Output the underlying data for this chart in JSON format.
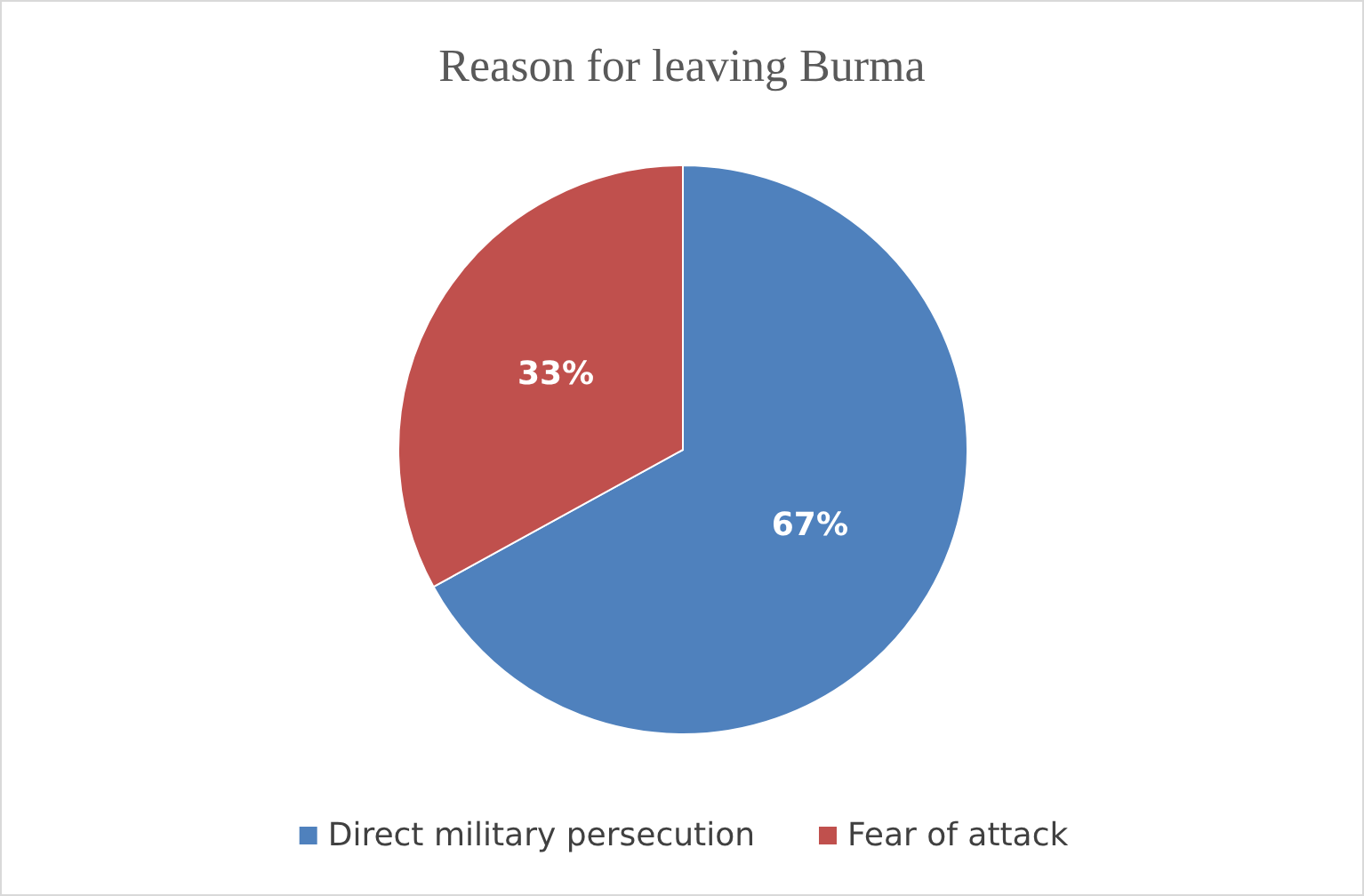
{
  "chart_data": {
    "type": "pie",
    "title": "Reason for leaving Burma",
    "categories": [
      "Direct military persecution",
      "Fear of attack"
    ],
    "values": [
      67,
      33
    ],
    "colors": [
      "#4f81bd",
      "#c0504d"
    ],
    "value_labels": [
      "67%",
      "33%"
    ],
    "legend": "bottom"
  }
}
